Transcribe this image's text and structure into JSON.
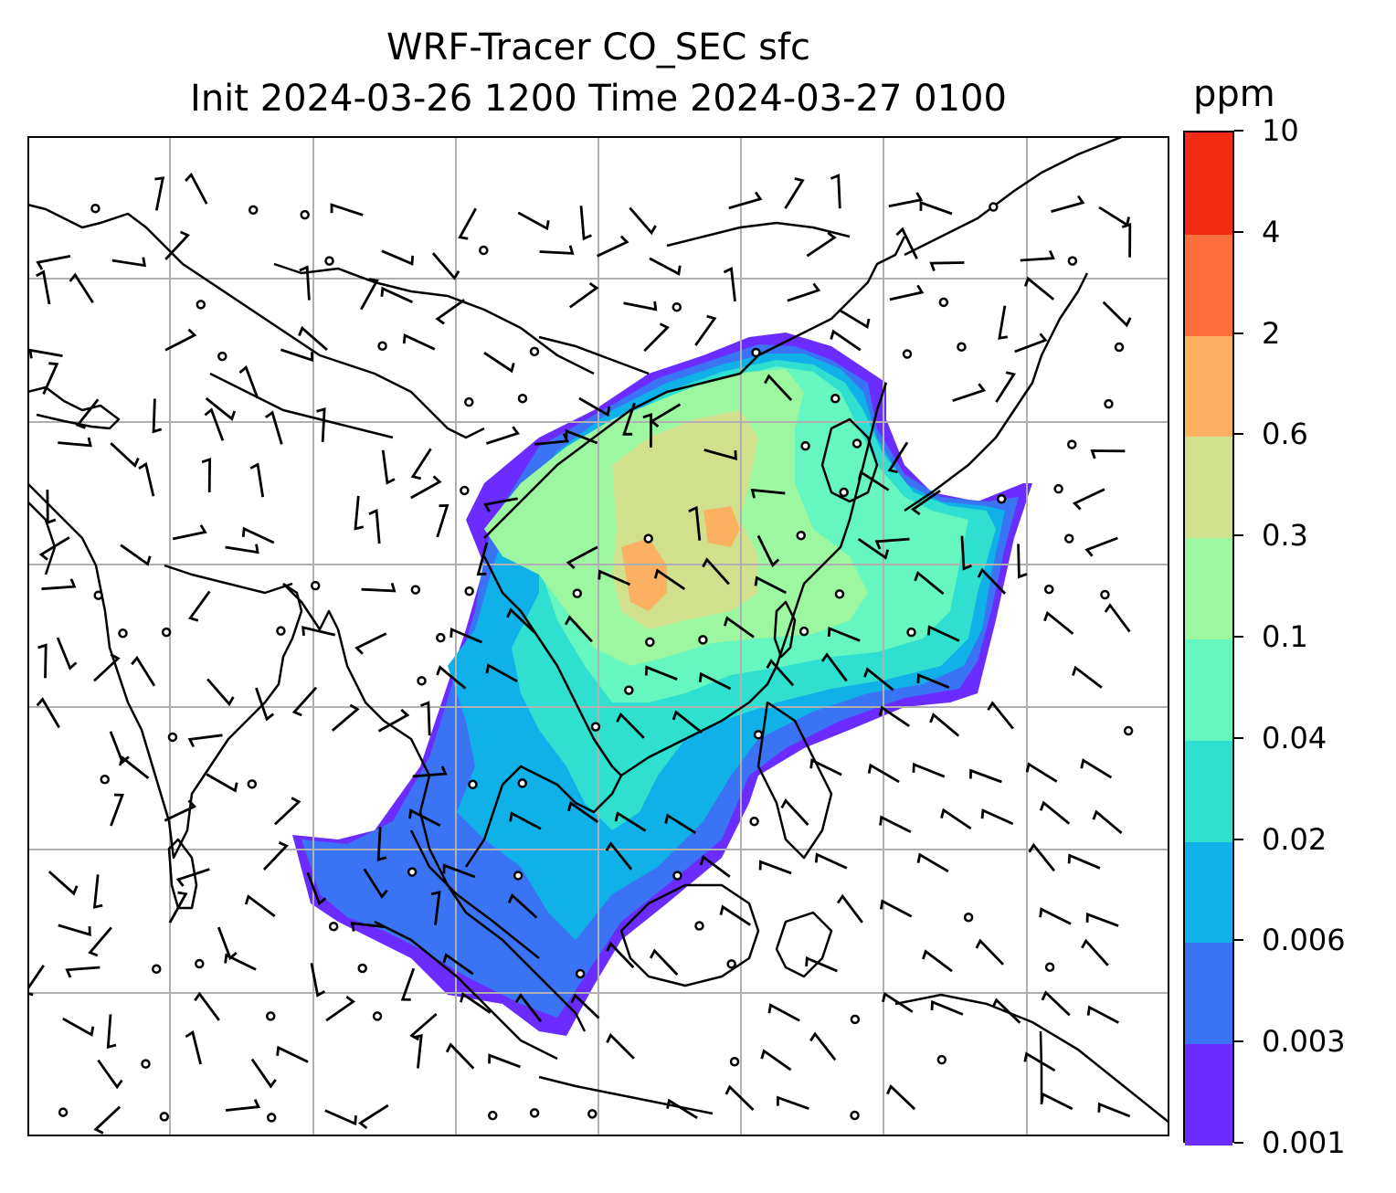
{
  "title": {
    "line1": "WRF-Tracer CO_SEC sfc",
    "line2": "Init 2024-03-26 1200 Time 2024-03-27 0100"
  },
  "colorbar": {
    "unit": "ppm",
    "ticks": [
      "0.001",
      "0.003",
      "0.006",
      "0.02",
      "0.04",
      "0.1",
      "0.3",
      "0.6",
      "2",
      "4",
      "10"
    ],
    "colors": [
      "#6a2cff",
      "#3a74f5",
      "#10b0e8",
      "#2fe0d0",
      "#66f6c0",
      "#9cf7a0",
      "#d0e08c",
      "#fcb062",
      "#fc6f3c",
      "#f42b14"
    ]
  },
  "map": {
    "coastline_color": "#000000",
    "gridline_color": "#b0b0b0",
    "plume_levels": [
      "#6a2cff",
      "#3a74f5",
      "#10b0e8",
      "#2fe0d0",
      "#66f6c0",
      "#9cf7a0",
      "#d0e08c",
      "#fcb062"
    ]
  }
}
